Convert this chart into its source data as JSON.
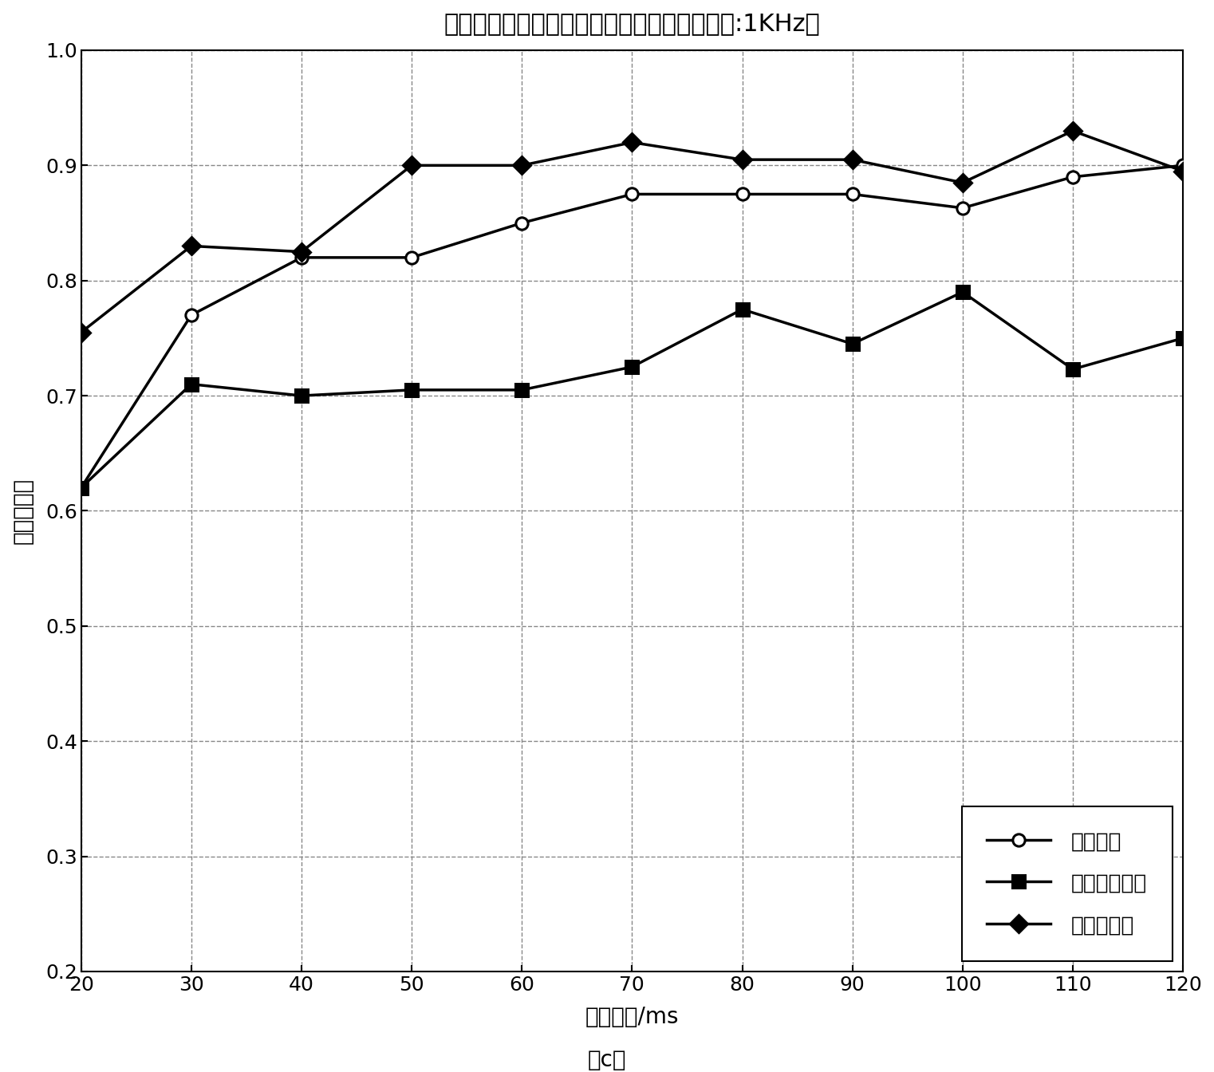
{
  "title": "驻留时间与分类正确率之间的关系（脉冲重频:1KHz）",
  "xlabel": "驻留时间/ms",
  "ylabel": "分类正确率",
  "caption": "（c）",
  "x": [
    20,
    30,
    40,
    50,
    60,
    70,
    80,
    90,
    100,
    110,
    120
  ],
  "series1_label": "时域特征",
  "series1_y": [
    0.62,
    0.77,
    0.82,
    0.82,
    0.85,
    0.875,
    0.875,
    0.875,
    0.863,
    0.89,
    0.9
  ],
  "series1_marker": "o",
  "series2_label": "多普勒域特征",
  "series2_y": [
    0.62,
    0.71,
    0.7,
    0.705,
    0.705,
    0.725,
    0.775,
    0.745,
    0.79,
    0.723,
    0.75
  ],
  "series2_marker": "s",
  "series3_label": "特征谱特征",
  "series3_y": [
    0.755,
    0.83,
    0.825,
    0.9,
    0.9,
    0.92,
    0.905,
    0.905,
    0.885,
    0.93,
    0.895
  ],
  "series3_marker": "D",
  "line_color": "#000000",
  "ylim": [
    0.2,
    1.0
  ],
  "xlim": [
    20,
    120
  ],
  "yticks": [
    0.2,
    0.3,
    0.4,
    0.5,
    0.6,
    0.7,
    0.8,
    0.9,
    1.0
  ],
  "xticks": [
    20,
    30,
    40,
    50,
    60,
    70,
    80,
    90,
    100,
    110,
    120
  ],
  "title_fontsize": 22,
  "label_fontsize": 20,
  "tick_fontsize": 18,
  "legend_fontsize": 19,
  "linewidth": 2.5,
  "markersize": 11
}
